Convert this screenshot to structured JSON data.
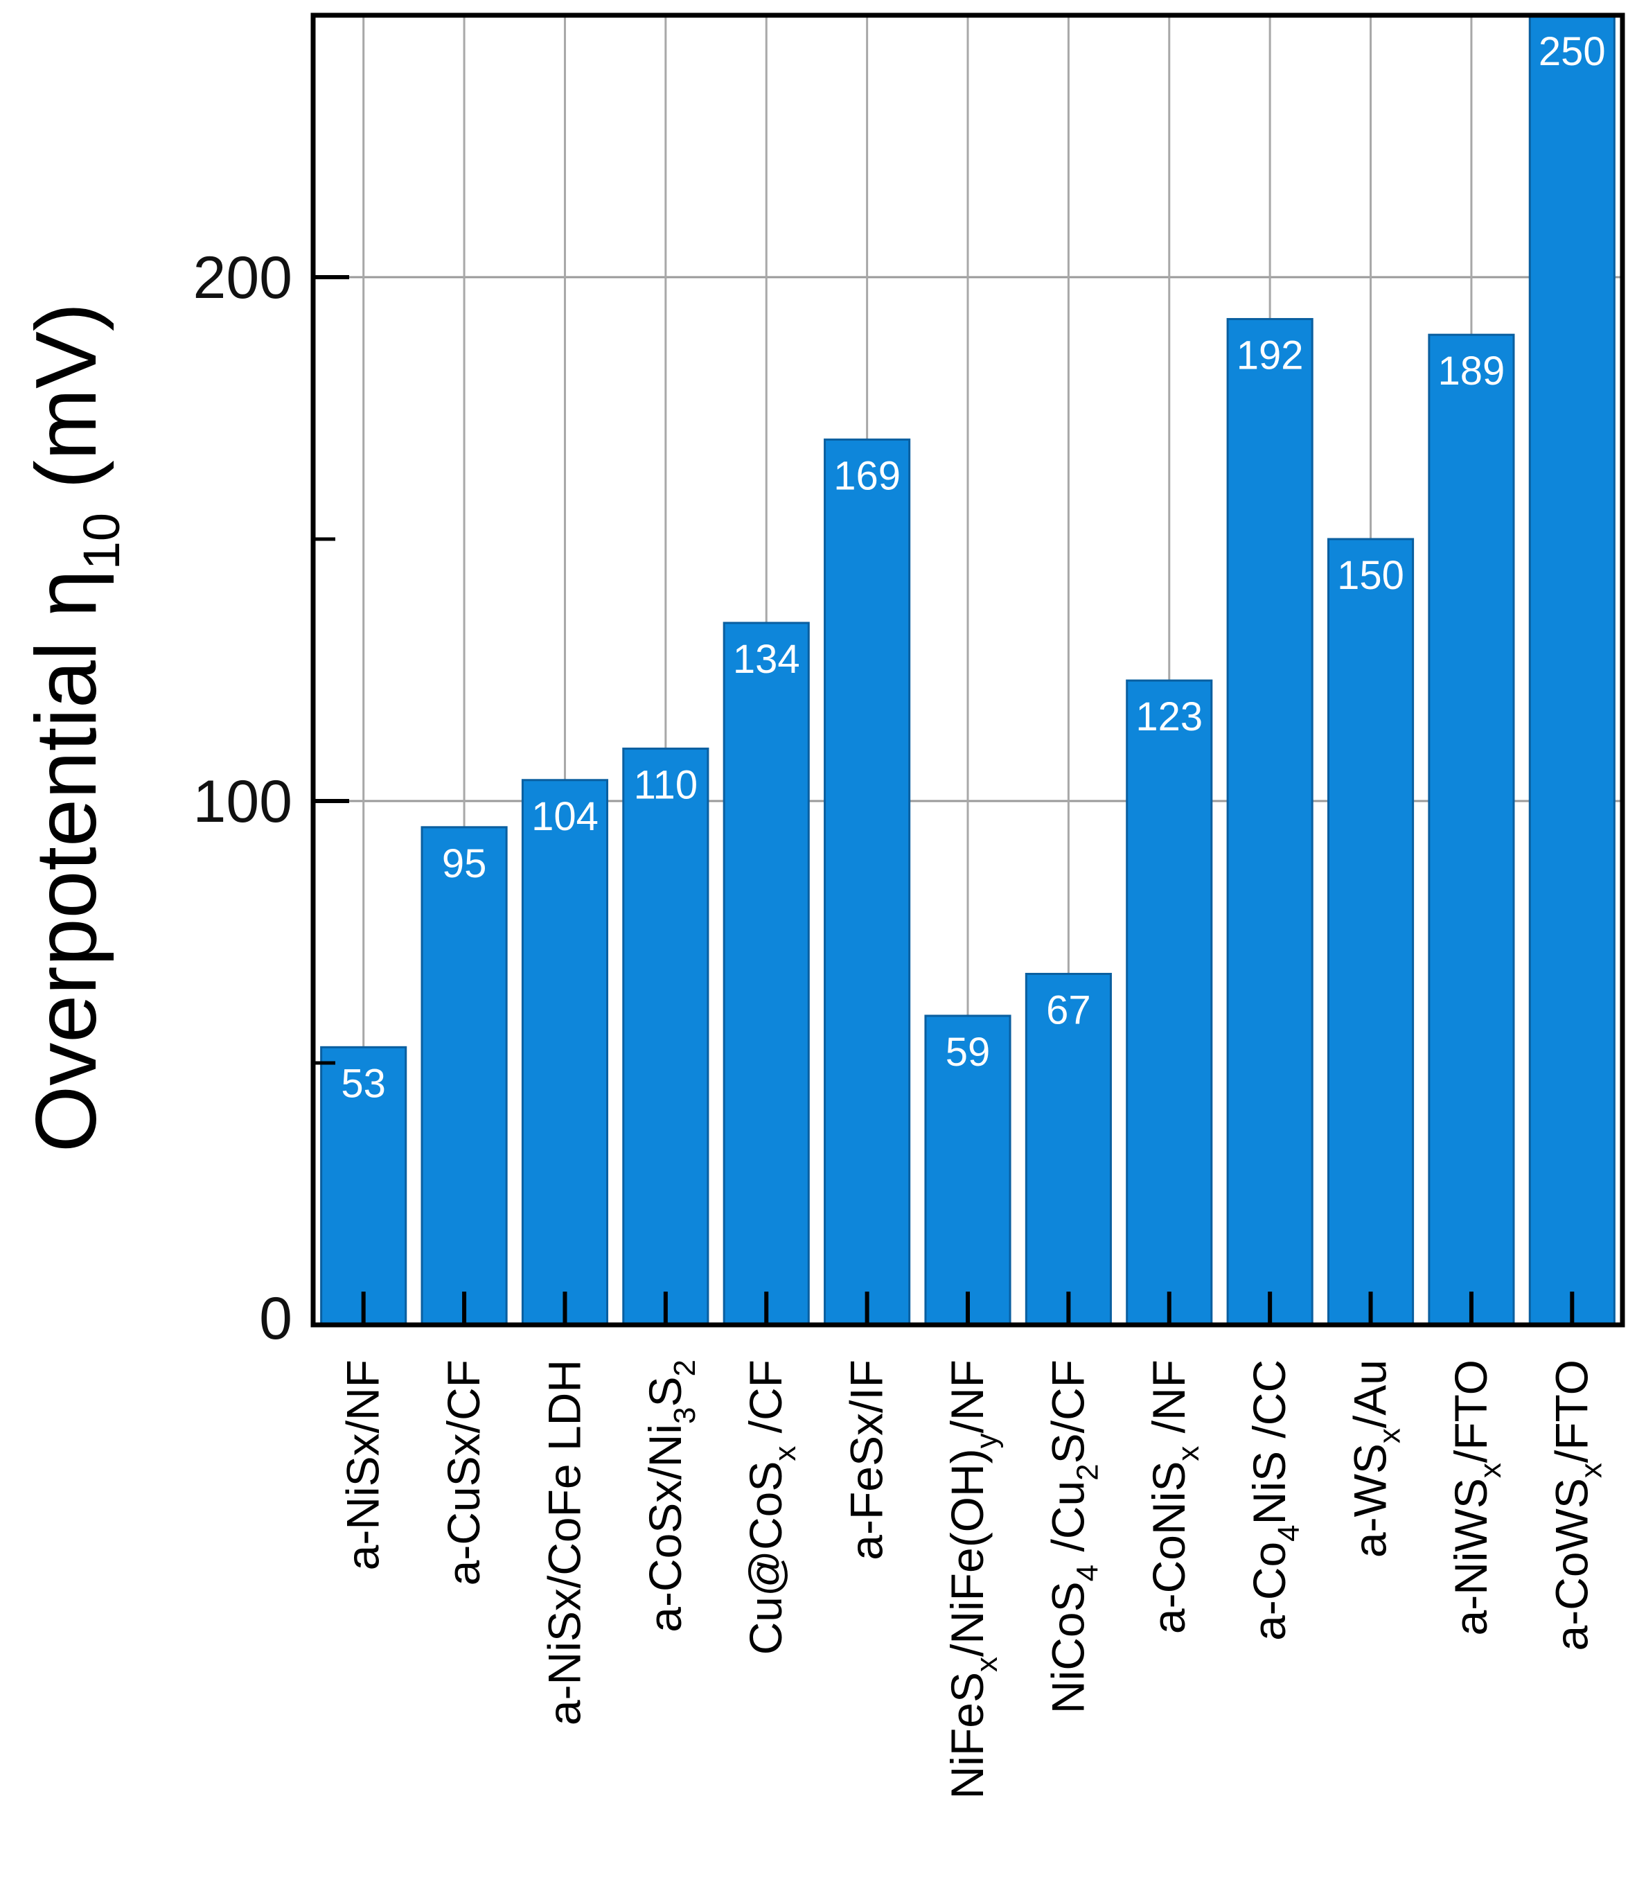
{
  "chart_data": {
    "type": "bar",
    "title": "",
    "ylabel": "Overpotential η10 (mV)",
    "ylabel_parts": [
      {
        "text": "Overpotential η"
      },
      {
        "text": "10",
        "sub": true
      },
      {
        "text": " (mV)"
      }
    ],
    "ylim": [
      0,
      250
    ],
    "yticks": [
      0,
      100,
      200
    ],
    "yticks_minor": [
      50,
      150
    ],
    "grid": true,
    "bar_color": "#0E86DA",
    "categories": [
      "a-NiSx/NF",
      "a-CuSx/CF",
      "a-NiSx/CoFe LDH",
      "a-CoSx/Ni3S2",
      "Cu@CoSx /CF",
      "a-FeSx/IF",
      "NiFeSx/NiFe(OH)y/NF",
      "NiCoS4 /Cu2S/CF",
      "a-CoNiSx /NF",
      "a-Co4NiS /CC",
      "a-WSx/Au",
      "a-NiWSx/FTO",
      "a-CoWSx/FTO"
    ],
    "category_parts": [
      [
        {
          "text": "a-NiSx/NF"
        }
      ],
      [
        {
          "text": "a-CuSx/CF"
        }
      ],
      [
        {
          "text": "a-NiSx/CoFe LDH"
        }
      ],
      [
        {
          "text": "a-CoSx/Ni"
        },
        {
          "text": "3",
          "sub": true
        },
        {
          "text": "S"
        },
        {
          "text": "2",
          "sub": true
        }
      ],
      [
        {
          "text": "Cu@CoS"
        },
        {
          "text": "x",
          "sub": true
        },
        {
          "text": " /CF"
        }
      ],
      [
        {
          "text": "a-FeSx/IF"
        }
      ],
      [
        {
          "text": "NiFeS"
        },
        {
          "text": "x",
          "sub": true
        },
        {
          "text": "/NiFe(OH)"
        },
        {
          "text": "y",
          "sub": true
        },
        {
          "text": "/NF"
        }
      ],
      [
        {
          "text": "NiCoS"
        },
        {
          "text": "4",
          "sub": true
        },
        {
          "text": " /Cu"
        },
        {
          "text": "2",
          "sub": true
        },
        {
          "text": "S/CF"
        }
      ],
      [
        {
          "text": "a-CoNiS"
        },
        {
          "text": "x",
          "sub": true
        },
        {
          "text": " /NF"
        }
      ],
      [
        {
          "text": "a-Co"
        },
        {
          "text": "4",
          "sub": true
        },
        {
          "text": "NiS /CC"
        }
      ],
      [
        {
          "text": "a-WS"
        },
        {
          "text": "x",
          "sub": true
        },
        {
          "text": "/Au"
        }
      ],
      [
        {
          "text": "a-NiWS"
        },
        {
          "text": "x",
          "sub": true
        },
        {
          "text": "/FTO"
        }
      ],
      [
        {
          "text": "a-CoWS"
        },
        {
          "text": "x",
          "sub": true
        },
        {
          "text": "/FTO"
        }
      ]
    ],
    "values": [
      53,
      95,
      104,
      110,
      134,
      169,
      59,
      67,
      123,
      192,
      150,
      189,
      250
    ],
    "data_labels": [
      "53",
      "95",
      "104",
      "110",
      "134",
      "169",
      "59",
      "67",
      "123",
      "192",
      "150",
      "189",
      "250"
    ]
  }
}
